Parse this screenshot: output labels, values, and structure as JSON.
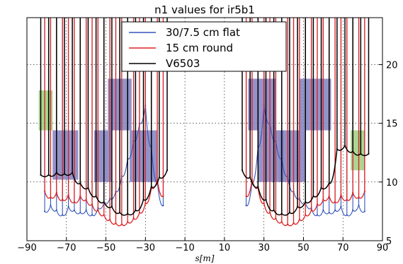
{
  "chart_data": {
    "type": "line",
    "title": "n1 values for ir5b1",
    "xlabel": "s[m]",
    "ylabel": "",
    "xlim": [
      -90,
      90
    ],
    "ylim": [
      5,
      24
    ],
    "xticks": [
      "−90",
      "−70",
      "−50",
      "−30",
      "−10",
      "10",
      "30",
      "50",
      "70",
      "90"
    ],
    "xtick_values": [
      -90,
      -70,
      -50,
      -30,
      -10,
      10,
      30,
      50,
      70,
      90
    ],
    "yticks": [
      "5",
      "10",
      "15",
      "20"
    ],
    "ytick_values": [
      5,
      10,
      15,
      20
    ],
    "y_axis_side": "right",
    "grid": true,
    "legend_position": "top-center",
    "series": [
      {
        "name": "30/7.5 cm flat",
        "color": "#3355bb",
        "x": [
          -81,
          -78,
          -75,
          -72,
          -69,
          -66,
          -63,
          -60,
          -57,
          -54,
          -51,
          -48,
          -45,
          -42,
          -39,
          -36,
          -33,
          -30,
          -27,
          -24,
          -21,
          21,
          24,
          27,
          30,
          33,
          36,
          39,
          42,
          45,
          48,
          51,
          54,
          57,
          60,
          63,
          66,
          69,
          72,
          75,
          78,
          81
        ],
        "y": [
          7.5,
          8.0,
          7.6,
          7.2,
          7.9,
          7.6,
          7.4,
          7.6,
          7.2,
          7.8,
          8.2,
          8.6,
          9.2,
          10.5,
          12.0,
          13.5,
          15.0,
          16.5,
          13.0,
          10.0,
          8.0,
          8.0,
          10.0,
          13.0,
          16.5,
          15.0,
          13.5,
          12.0,
          10.5,
          9.2,
          8.6,
          8.2,
          7.8,
          7.2,
          7.6,
          7.4,
          7.6,
          7.9,
          7.2,
          7.6,
          8.0,
          7.5
        ]
      },
      {
        "name": "15 cm round",
        "color": "#dd2222",
        "x": [
          -81,
          -78,
          -75,
          -72,
          -69,
          -66,
          -63,
          -60,
          -57,
          -54,
          -51,
          -48,
          -45,
          -42,
          -39,
          -36,
          -33,
          -30,
          -27,
          -24,
          -21,
          21,
          24,
          27,
          30,
          33,
          36,
          39,
          42,
          45,
          48,
          51,
          54,
          57,
          60,
          63,
          66,
          69,
          72,
          75,
          78,
          81
        ],
        "y": [
          9.2,
          8.7,
          9.1,
          8.5,
          8.9,
          8.3,
          8.8,
          8.5,
          8.1,
          7.6,
          7.2,
          6.8,
          6.5,
          6.4,
          6.6,
          6.9,
          7.4,
          8.2,
          9.5,
          10.2,
          8.8,
          8.8,
          10.2,
          9.5,
          8.2,
          7.4,
          6.9,
          6.6,
          6.4,
          6.5,
          6.8,
          7.2,
          7.6,
          8.1,
          8.5,
          8.8,
          8.3,
          8.9,
          8.5,
          9.1,
          8.7,
          9.2
        ]
      },
      {
        "name": "V6503",
        "color": "#000000",
        "x": [
          -83,
          -79,
          -75,
          -71,
          -67,
          -63,
          -59,
          -55,
          -51,
          -47,
          -43,
          -39,
          -35,
          -31,
          -27,
          -23,
          -19,
          19,
          23,
          27,
          31,
          35,
          39,
          43,
          47,
          51,
          55,
          59,
          63,
          67,
          71,
          75,
          79,
          83
        ],
        "y": [
          10.6,
          10.6,
          10.8,
          10.7,
          10.8,
          9.9,
          9.5,
          8.8,
          8.3,
          7.9,
          7.4,
          7.3,
          7.6,
          8.5,
          9.6,
          10.4,
          11.0,
          11.0,
          10.4,
          9.6,
          8.5,
          7.6,
          7.3,
          7.4,
          7.9,
          8.3,
          8.8,
          9.5,
          9.9,
          12.8,
          13.1,
          12.6,
          12.4,
          12.4
        ]
      }
    ],
    "shaded_regions": [
      {
        "color": "#9fce7e",
        "x": [
          -84,
          -77
        ],
        "y": [
          14.4,
          17.8
        ]
      },
      {
        "color": "#8080c0",
        "x": [
          -77,
          -64
        ],
        "y": [
          10.2,
          14.4
        ]
      },
      {
        "color": "#8080c0",
        "x": [
          -56,
          -47
        ],
        "y": [
          10.0,
          14.4
        ]
      },
      {
        "color": "#8080c0",
        "x": [
          -49,
          -37
        ],
        "y": [
          14.4,
          18.8
        ]
      },
      {
        "color": "#8080c0",
        "x": [
          -38,
          -24
        ],
        "y": [
          10.0,
          14.4
        ]
      },
      {
        "color": "#8080c0",
        "x": [
          22,
          36
        ],
        "y": [
          14.4,
          18.8
        ]
      },
      {
        "color": "#8080c0",
        "x": [
          27,
          40
        ],
        "y": [
          10.0,
          14.4
        ]
      },
      {
        "color": "#8080c0",
        "x": [
          38,
          51
        ],
        "y": [
          10.0,
          14.4
        ]
      },
      {
        "color": "#8080c0",
        "x": [
          48,
          64
        ],
        "y": [
          14.4,
          18.8
        ]
      },
      {
        "color": "#9fce7e",
        "x": [
          74,
          81
        ],
        "y": [
          11.0,
          14.4
        ]
      }
    ]
  }
}
